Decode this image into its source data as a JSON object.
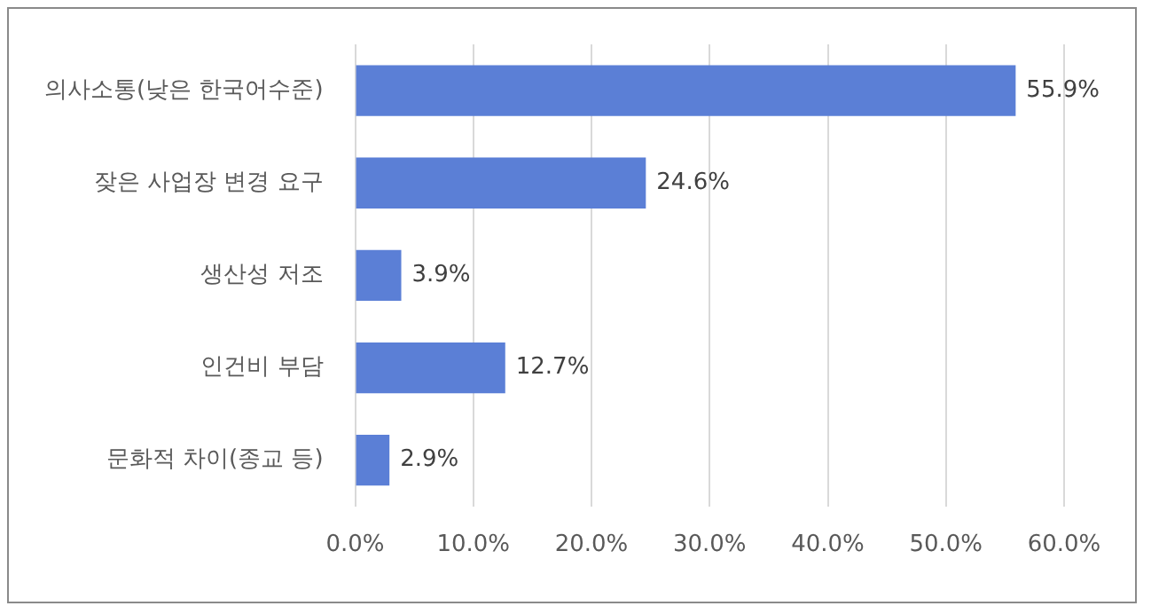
{
  "chart_data": {
    "type": "bar",
    "orientation": "horizontal",
    "categories": [
      "의사소통(낮은 한국어수준)",
      "잦은 사업장 변경 요구",
      "생산성 저조",
      "인건비 부담",
      "문화적 차이(종교 등)"
    ],
    "values": [
      55.9,
      24.6,
      3.9,
      12.7,
      2.9
    ],
    "color": "#5b7fd6",
    "xlim": [
      0,
      60
    ],
    "xticks": [
      {
        "value": 0,
        "label": "0.0%"
      },
      {
        "value": 10,
        "label": "10.0%"
      },
      {
        "value": 20,
        "label": "20.0%"
      },
      {
        "value": 30,
        "label": "30.0%"
      },
      {
        "value": 40,
        "label": "40.0%"
      },
      {
        "value": 50,
        "label": "50.0%"
      },
      {
        "value": 60,
        "label": "60.0%"
      }
    ],
    "grid": "x",
    "legend": false,
    "value_labels": [
      "55.9%",
      "24.6%",
      "3.9%",
      "12.7%",
      "2.9%"
    ]
  }
}
